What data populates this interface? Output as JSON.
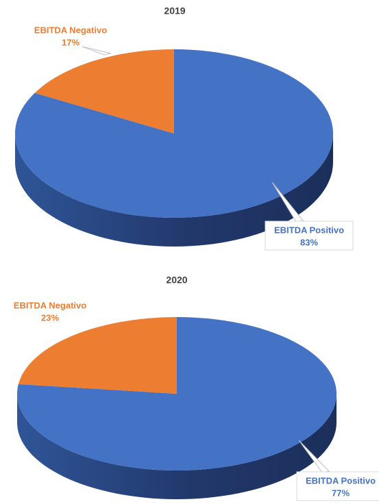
{
  "chart_data": [
    {
      "type": "pie",
      "title": "2019",
      "categories": [
        "EBITDA Positivo",
        "EBITDA Negativo"
      ],
      "values": [
        83,
        17
      ],
      "value_labels": [
        "83%",
        "17%"
      ],
      "colors": [
        "#4472c4",
        "#ed7d31"
      ]
    },
    {
      "type": "pie",
      "title": "2020",
      "categories": [
        "EBITDA Positivo",
        "EBITDA Negativo"
      ],
      "values": [
        77,
        23
      ],
      "value_labels": [
        "77%",
        "23%"
      ],
      "colors": [
        "#4472c4",
        "#ed7d31"
      ]
    }
  ]
}
